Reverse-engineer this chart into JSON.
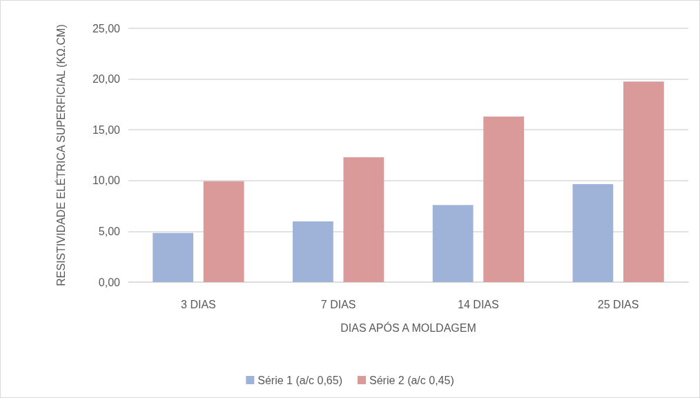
{
  "chart_data": {
    "type": "bar",
    "xlabel": "DIAS APÓS A MOLDAGEM",
    "ylabel": "RESISTIVIDADE ELÉTRICA SUPERFICIAL (KΩ.CM)",
    "categories": [
      "3 DIAS",
      "7 DIAS",
      "14 DIAS",
      "25 DIAS"
    ],
    "series": [
      {
        "name": "Série 1 (a/c 0,65)",
        "color": "#9fb3d9",
        "values": [
          4.84,
          5.97,
          7.6,
          9.65
        ]
      },
      {
        "name": "Série 2 (a/c 0,45)",
        "color": "#d99a99",
        "values": [
          9.93,
          12.3,
          16.3,
          19.75
        ]
      }
    ],
    "ylim": [
      0,
      25
    ],
    "yticks": [
      {
        "value": 0,
        "label": "0,00"
      },
      {
        "value": 5,
        "label": "5,00"
      },
      {
        "value": 10,
        "label": "10,00"
      },
      {
        "value": 15,
        "label": "15,00"
      },
      {
        "value": 20,
        "label": "20,00"
      },
      {
        "value": 25,
        "label": "25,00"
      }
    ],
    "grid": "y",
    "legend": "bottom"
  }
}
